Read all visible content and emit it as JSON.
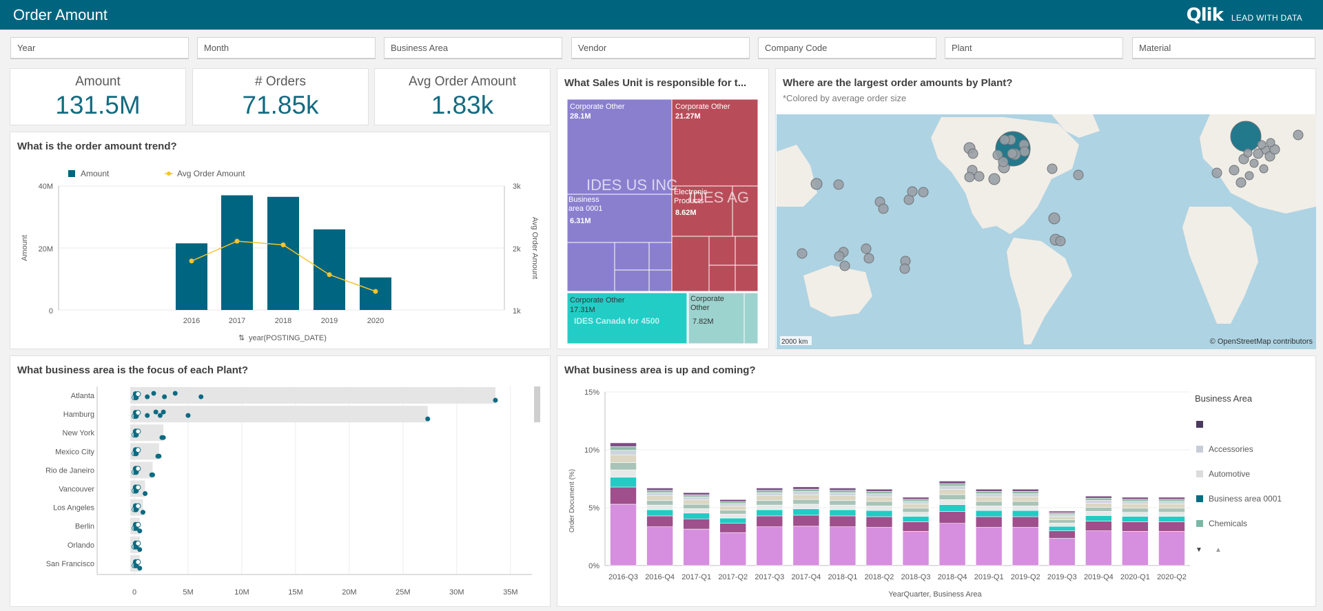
{
  "app": {
    "title": "Order Amount",
    "logo_text": "Qlik",
    "tagline": "LEAD WITH DATA"
  },
  "filters": [
    "Year",
    "Month",
    "Business Area",
    "Vendor",
    "Company Code",
    "Plant",
    "Material"
  ],
  "kpis": [
    {
      "label": "Amount",
      "value": "131.5M"
    },
    {
      "label": "# Orders",
      "value": "71.85k"
    },
    {
      "label": "Avg Order Amount",
      "value": "1.83k"
    }
  ],
  "trend": {
    "title": "What is the order amount trend?",
    "legend": [
      "Amount",
      "Avg Order Amount"
    ],
    "y_ticks": [
      "40M",
      "20M",
      "0"
    ],
    "y2_ticks": [
      "3k",
      "2k",
      "1k"
    ],
    "ylabel": "Amount",
    "y2label": "Avg Order Amount",
    "xlabel": "year(POSTING_DATE)"
  },
  "treemap": {
    "title": "What Sales Unit is responsible for t...",
    "groups": [
      "IDES US INC",
      "IDES AG",
      "IDES Canada for 4500"
    ],
    "labels": [
      "Corporate Other",
      "28.1M",
      "Corporate Other",
      "21.27M",
      "Business area 0001",
      "6.31M",
      "Electronic Products",
      "8.62M",
      "Corporate Other",
      "17.31M",
      "Corporate Other",
      "7.82M"
    ]
  },
  "map": {
    "title": "Where are the largest order amounts by Plant?",
    "subtitle": "*Colored by average order size",
    "scale": "2000 km",
    "attribution": "© OpenStreetMap contributors"
  },
  "plants_chart": {
    "title": "What business area is the focus of each Plant?",
    "x_ticks": [
      "0",
      "5M",
      "10M",
      "15M",
      "20M",
      "25M",
      "30M",
      "35M"
    ]
  },
  "stacked": {
    "title": "What business area is up and coming?",
    "y_ticks": [
      "15%",
      "10%",
      "5%",
      "0%"
    ],
    "ylabel": "Order Document (%)",
    "xlabel": "YearQuarter, Business Area",
    "legend_title": "Business Area",
    "legend": [
      {
        "name": "",
        "color": "#4b3a5e"
      },
      {
        "name": "Accessories",
        "color": "#c8ccd6"
      },
      {
        "name": "Automotive",
        "color": "#dcdcdc"
      },
      {
        "name": "Business area 0001",
        "color": "#0b6b82"
      },
      {
        "name": "Chemicals",
        "color": "#7ab8a5"
      }
    ],
    "colors": [
      "#d68fde",
      "#9e4f8c",
      "#22cbc4",
      "#e8e8e8",
      "#a8c4b8",
      "#dcd6c2",
      "#ccd4dc",
      "#8ebaa4",
      "#7d4d85"
    ],
    "segments_pct": [
      0.5,
      0.14,
      0.08,
      0.06,
      0.06,
      0.06,
      0.04,
      0.03,
      0.03
    ]
  },
  "chart_data": [
    {
      "type": "bar",
      "title": "What is the order amount trend?",
      "categories": [
        "2016",
        "2017",
        "2018",
        "2019",
        "2020"
      ],
      "series": [
        {
          "name": "Amount",
          "values": [
            21500000,
            37000000,
            36500000,
            26000000,
            10500000
          ]
        },
        {
          "name": "Avg Order Amount",
          "values": [
            1790,
            2110,
            2050,
            1570,
            1300
          ]
        }
      ],
      "xlabel": "year(POSTING_DATE)",
      "ylabel": "Amount",
      "ylim": [
        0,
        40000000
      ],
      "y2lim": [
        1000,
        3000
      ]
    },
    {
      "type": "bar",
      "title": "What business area is the focus of each Plant?",
      "categories": [
        "Atlanta",
        "Hamburg",
        "New York",
        "Mexico City",
        "Rio de Janeiro",
        "Vancouver",
        "Los Angeles",
        "Berlin",
        "Orlando",
        "San Francisco"
      ],
      "values": [
        33600000,
        27300000,
        2700000,
        2300000,
        1700000,
        1000000,
        800000,
        500000,
        500000,
        500000
      ],
      "xlim": [
        0,
        37000000
      ]
    },
    {
      "type": "bar",
      "title": "What business area is up and coming?",
      "categories": [
        "2016-Q3",
        "2016-Q4",
        "2017-Q1",
        "2017-Q2",
        "2017-Q3",
        "2017-Q4",
        "2018-Q1",
        "2018-Q2",
        "2018-Q3",
        "2018-Q4",
        "2019-Q1",
        "2019-Q2",
        "2019-Q3",
        "2019-Q4",
        "2020-Q1",
        "2020-Q2"
      ],
      "values": [
        10.6,
        6.7,
        6.3,
        5.7,
        6.7,
        6.8,
        6.7,
        6.6,
        5.9,
        7.3,
        6.6,
        6.6,
        4.7,
        6.0,
        5.9,
        5.9
      ],
      "ylabel": "Order Document (%)",
      "xlabel": "YearQuarter, Business Area",
      "ylim": [
        0,
        15
      ]
    }
  ]
}
